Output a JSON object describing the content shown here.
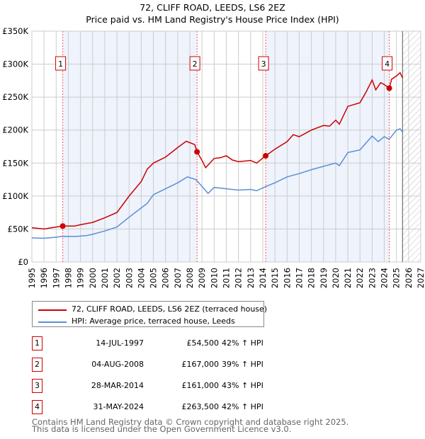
{
  "chart_data": {
    "type": "line",
    "title": "72, CLIFF ROAD, LEEDS, LS6 2EZ",
    "subtitle": "Price paid vs. HM Land Registry's House Price Index (HPI)",
    "xlim": [
      1995,
      2027
    ],
    "ylim": [
      0,
      350000
    ],
    "y_ticks": [
      0,
      50000,
      100000,
      150000,
      200000,
      250000,
      300000,
      350000
    ],
    "y_tick_labels": [
      "£0",
      "£50K",
      "£100K",
      "£150K",
      "£200K",
      "£250K",
      "£300K",
      "£350K"
    ],
    "x_ticks": [
      1995,
      1996,
      1997,
      1998,
      1999,
      2000,
      2001,
      2002,
      2003,
      2004,
      2005,
      2006,
      2007,
      2008,
      2009,
      2010,
      2011,
      2012,
      2013,
      2014,
      2015,
      2016,
      2017,
      2018,
      2019,
      2020,
      2021,
      2022,
      2023,
      2024,
      2025,
      2026,
      2027
    ],
    "grid": true,
    "forecast_hatch_from": 2025.5,
    "series": [
      {
        "name": "72, CLIFF ROAD, LEEDS, LS6 2EZ (terraced house)",
        "color": "#cc0000",
        "x": [
          1995,
          1996,
          1997,
          1997.54,
          1998.5,
          1999,
          2000,
          2001,
          2002,
          2003,
          2004,
          2004.5,
          2005,
          2006,
          2007,
          2007.7,
          2008.4,
          2008.59,
          2009,
          2009.3,
          2010,
          2010.5,
          2011,
          2011.5,
          2012,
          2013,
          2013.5,
          2014.24,
          2015,
          2016,
          2016.5,
          2017,
          2018,
          2019,
          2019.5,
          2020,
          2020.3,
          2021,
          2022,
          2022.5,
          2023,
          2023.3,
          2023.7,
          2024,
          2024.41,
          2024.6,
          2025,
          2025.3,
          2025.5
        ],
        "y": [
          52000,
          50000,
          53000,
          54500,
          54400,
          56500,
          60000,
          67000,
          75000,
          100000,
          122000,
          141000,
          150000,
          159000,
          173500,
          183000,
          178000,
          167000,
          154000,
          143000,
          157000,
          158000,
          161000,
          154600,
          152000,
          154000,
          150000,
          161000,
          171000,
          182500,
          193000,
          190000,
          200000,
          207000,
          206000,
          215000,
          209000,
          236000,
          241500,
          257700,
          276000,
          261000,
          272000,
          269000,
          263500,
          277000,
          282000,
          287000,
          279000
        ]
      },
      {
        "name": "HPI: Average price, terraced house, Leeds",
        "color": "#5b8fd6",
        "x": [
          1995,
          1996,
          1997,
          1997.5,
          1998.5,
          1999.5,
          2000,
          2001,
          2002,
          2003,
          2004,
          2004.5,
          2005,
          2006,
          2007,
          2007.8,
          2008.5,
          2009,
          2009.5,
          2010,
          2011,
          2012,
          2013,
          2013.5,
          2014.2,
          2015,
          2016,
          2017,
          2018,
          2019,
          2020,
          2020.3,
          2021,
          2022,
          2023,
          2023.5,
          2024,
          2024.4,
          2025,
          2025.3,
          2025.5
        ],
        "y": [
          36500,
          36000,
          37600,
          39000,
          38600,
          40000,
          42000,
          47000,
          53000,
          68000,
          82000,
          89000,
          102000,
          111000,
          120000,
          129000,
          125000,
          114500,
          104000,
          113000,
          111000,
          109000,
          110000,
          108000,
          114000,
          120000,
          129000,
          134000,
          140000,
          145000,
          150000,
          146000,
          166000,
          170000,
          191000,
          182500,
          190000,
          186000,
          200000,
          202000,
          197000
        ]
      }
    ],
    "sales": [
      {
        "num": "1",
        "x": 1997.54,
        "y": 54500
      },
      {
        "num": "2",
        "x": 2008.59,
        "y": 167000
      },
      {
        "num": "3",
        "x": 2014.24,
        "y": 161000
      },
      {
        "num": "4",
        "x": 2024.41,
        "y": 263500
      }
    ]
  },
  "legend": {
    "property": "72, CLIFF ROAD, LEEDS, LS6 2EZ (terraced house)",
    "hpi": "HPI: Average price, terraced house, Leeds"
  },
  "table": [
    {
      "num": "1",
      "date": "14-JUL-1997",
      "price": "£54,500",
      "hpi": "42% ↑ HPI"
    },
    {
      "num": "2",
      "date": "04-AUG-2008",
      "price": "£167,000",
      "hpi": "39% ↑ HPI"
    },
    {
      "num": "3",
      "date": "28-MAR-2014",
      "price": "£161,000",
      "hpi": "43% ↑ HPI"
    },
    {
      "num": "4",
      "date": "31-MAY-2024",
      "price": "£263,500",
      "hpi": "42% ↑ HPI"
    }
  ],
  "footer": {
    "line1": "Contains HM Land Registry data © Crown copyright and database right 2025.",
    "line2": "This data is licensed under the Open Government Licence v3.0."
  }
}
